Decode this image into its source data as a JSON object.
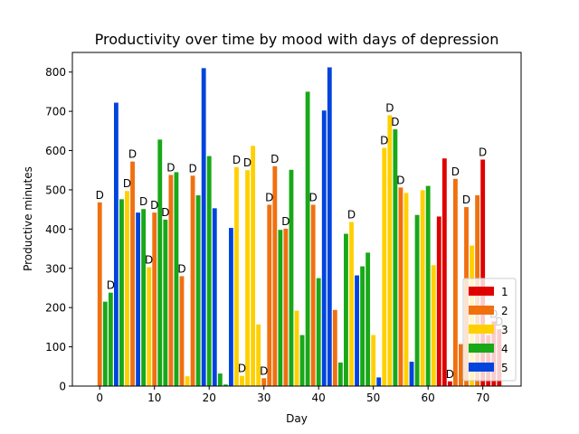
{
  "chart_data": {
    "type": "bar",
    "title": "Productivity over time by mood with days of depression",
    "xlabel": "Day",
    "ylabel": "Productive minutes",
    "xlim": [
      -5,
      77
    ],
    "ylim": [
      0,
      850
    ],
    "xticks": [
      0,
      10,
      20,
      30,
      40,
      50,
      60,
      70
    ],
    "yticks": [
      0,
      100,
      200,
      300,
      400,
      500,
      600,
      700,
      800
    ],
    "grid": false,
    "legend_position": "bottom-right",
    "depression_marker": "D",
    "mood_colors": {
      "1": "#e00000",
      "2": "#f07010",
      "3": "#ffd000",
      "4": "#18a818",
      "5": "#0044dd"
    },
    "legend": [
      {
        "label": "1",
        "color": "#e00000"
      },
      {
        "label": "2",
        "color": "#f07010"
      },
      {
        "label": "3",
        "color": "#ffd000"
      },
      {
        "label": "4",
        "color": "#18a818"
      },
      {
        "label": "5",
        "color": "#0044dd"
      }
    ],
    "bars": [
      {
        "day": 0,
        "value": 468,
        "mood": 2,
        "depression": true
      },
      {
        "day": 1,
        "value": 215,
        "mood": 4,
        "depression": false
      },
      {
        "day": 2,
        "value": 238,
        "mood": 4,
        "depression": true
      },
      {
        "day": 3,
        "value": 722,
        "mood": 5,
        "depression": false
      },
      {
        "day": 4,
        "value": 476,
        "mood": 4,
        "depression": false
      },
      {
        "day": 5,
        "value": 497,
        "mood": 3,
        "depression": true
      },
      {
        "day": 6,
        "value": 572,
        "mood": 2,
        "depression": true
      },
      {
        "day": 7,
        "value": 442,
        "mood": 5,
        "depression": false
      },
      {
        "day": 8,
        "value": 451,
        "mood": 4,
        "depression": true
      },
      {
        "day": 9,
        "value": 303,
        "mood": 3,
        "depression": true
      },
      {
        "day": 10,
        "value": 442,
        "mood": 2,
        "depression": true
      },
      {
        "day": 11,
        "value": 628,
        "mood": 4,
        "depression": false
      },
      {
        "day": 12,
        "value": 424,
        "mood": 4,
        "depression": true
      },
      {
        "day": 13,
        "value": 538,
        "mood": 2,
        "depression": true
      },
      {
        "day": 14,
        "value": 545,
        "mood": 4,
        "depression": false
      },
      {
        "day": 15,
        "value": 280,
        "mood": 2,
        "depression": true
      },
      {
        "day": 16,
        "value": 25,
        "mood": 3,
        "depression": false
      },
      {
        "day": 17,
        "value": 536,
        "mood": 2,
        "depression": true
      },
      {
        "day": 18,
        "value": 486,
        "mood": 4,
        "depression": false
      },
      {
        "day": 19,
        "value": 810,
        "mood": 5,
        "depression": false
      },
      {
        "day": 20,
        "value": 586,
        "mood": 4,
        "depression": false
      },
      {
        "day": 21,
        "value": 453,
        "mood": 5,
        "depression": false
      },
      {
        "day": 22,
        "value": 32,
        "mood": 4,
        "depression": false
      },
      {
        "day": 23,
        "value": 4,
        "mood": 4,
        "depression": false
      },
      {
        "day": 24,
        "value": 403,
        "mood": 5,
        "depression": false
      },
      {
        "day": 25,
        "value": 558,
        "mood": 3,
        "depression": true
      },
      {
        "day": 26,
        "value": 26,
        "mood": 3,
        "depression": true
      },
      {
        "day": 27,
        "value": 550,
        "mood": 3,
        "depression": true
      },
      {
        "day": 28,
        "value": 612,
        "mood": 3,
        "depression": false
      },
      {
        "day": 29,
        "value": 157,
        "mood": 3,
        "depression": false
      },
      {
        "day": 30,
        "value": 20,
        "mood": 2,
        "depression": true
      },
      {
        "day": 31,
        "value": 462,
        "mood": 2,
        "depression": true
      },
      {
        "day": 32,
        "value": 560,
        "mood": 2,
        "depression": true
      },
      {
        "day": 33,
        "value": 398,
        "mood": 4,
        "depression": false
      },
      {
        "day": 34,
        "value": 401,
        "mood": 2,
        "depression": true
      },
      {
        "day": 35,
        "value": 551,
        "mood": 4,
        "depression": false
      },
      {
        "day": 36,
        "value": 192,
        "mood": 3,
        "depression": false
      },
      {
        "day": 37,
        "value": 130,
        "mood": 4,
        "depression": false
      },
      {
        "day": 38,
        "value": 750,
        "mood": 4,
        "depression": false
      },
      {
        "day": 39,
        "value": 462,
        "mood": 2,
        "depression": true
      },
      {
        "day": 40,
        "value": 275,
        "mood": 4,
        "depression": false
      },
      {
        "day": 41,
        "value": 702,
        "mood": 5,
        "depression": false
      },
      {
        "day": 42,
        "value": 812,
        "mood": 5,
        "depression": false
      },
      {
        "day": 43,
        "value": 194,
        "mood": 2,
        "depression": false
      },
      {
        "day": 44,
        "value": 60,
        "mood": 4,
        "depression": false
      },
      {
        "day": 45,
        "value": 388,
        "mood": 4,
        "depression": false
      },
      {
        "day": 46,
        "value": 418,
        "mood": 3,
        "depression": true
      },
      {
        "day": 47,
        "value": 282,
        "mood": 5,
        "depression": false
      },
      {
        "day": 48,
        "value": 305,
        "mood": 4,
        "depression": false
      },
      {
        "day": 49,
        "value": 340,
        "mood": 4,
        "depression": false
      },
      {
        "day": 50,
        "value": 130,
        "mood": 3,
        "depression": false
      },
      {
        "day": 51,
        "value": 22,
        "mood": 5,
        "depression": false
      },
      {
        "day": 52,
        "value": 607,
        "mood": 3,
        "depression": true
      },
      {
        "day": 53,
        "value": 690,
        "mood": 3,
        "depression": true
      },
      {
        "day": 54,
        "value": 654,
        "mood": 4,
        "depression": true
      },
      {
        "day": 55,
        "value": 506,
        "mood": 2,
        "depression": true
      },
      {
        "day": 56,
        "value": 492,
        "mood": 3,
        "depression": false
      },
      {
        "day": 57,
        "value": 62,
        "mood": 5,
        "depression": false
      },
      {
        "day": 58,
        "value": 436,
        "mood": 4,
        "depression": false
      },
      {
        "day": 59,
        "value": 499,
        "mood": 3,
        "depression": false
      },
      {
        "day": 60,
        "value": 510,
        "mood": 4,
        "depression": false
      },
      {
        "day": 61,
        "value": 308,
        "mood": 3,
        "depression": false
      },
      {
        "day": 62,
        "value": 432,
        "mood": 1,
        "depression": false
      },
      {
        "day": 63,
        "value": 580,
        "mood": 1,
        "depression": false
      },
      {
        "day": 64,
        "value": 12,
        "mood": 1,
        "depression": true
      },
      {
        "day": 65,
        "value": 528,
        "mood": 2,
        "depression": true
      },
      {
        "day": 66,
        "value": 107,
        "mood": 2,
        "depression": false
      },
      {
        "day": 67,
        "value": 456,
        "mood": 2,
        "depression": true
      },
      {
        "day": 68,
        "value": 358,
        "mood": 3,
        "depression": false
      },
      {
        "day": 69,
        "value": 486,
        "mood": 2,
        "depression": false
      },
      {
        "day": 70,
        "value": 577,
        "mood": 1,
        "depression": true
      },
      {
        "day": 71,
        "value": 130,
        "mood": 1,
        "depression": false
      },
      {
        "day": 72,
        "value": 165,
        "mood": 1,
        "depression": true
      },
      {
        "day": 73,
        "value": 145,
        "mood": 1,
        "depression": true
      }
    ]
  }
}
